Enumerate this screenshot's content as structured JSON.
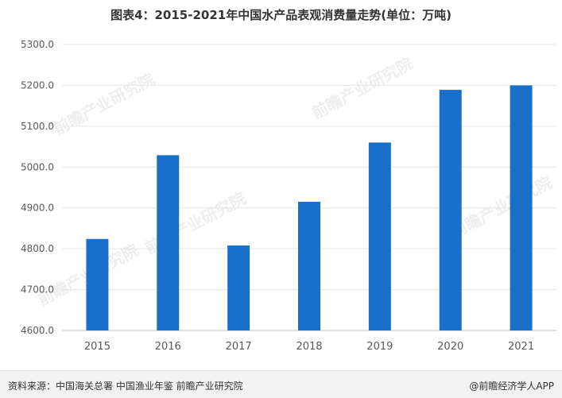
{
  "title": "图表4：2015-2021年中国水产品表观消费量走势(单位：万吨)",
  "source_text": "资料来源：中国海关总署 中国渔业年鉴 前瞻产业研究院",
  "brand_text": "@前瞻经济学人APP",
  "watermark": "前瞻产业研究院",
  "colors": {
    "bar": "#1a70c8",
    "grid": "#e5e5e5",
    "axis": "#bfbfbf",
    "text": "#595959"
  },
  "chart_data": {
    "type": "bar",
    "title": "图表4：2015-2021年中国水产品表观消费量走势(单位：万吨)",
    "categories": [
      "2015",
      "2016",
      "2017",
      "2018",
      "2019",
      "2020",
      "2021"
    ],
    "values": [
      4824,
      5029,
      4808,
      4915,
      5060,
      5189,
      5200
    ],
    "ylim": [
      4600,
      5300
    ],
    "yticks": [
      "4600.0",
      "4700.0",
      "4800.0",
      "4900.0",
      "5000.0",
      "5100.0",
      "5200.0",
      "5300.0"
    ],
    "grid": true,
    "legend": "none"
  }
}
